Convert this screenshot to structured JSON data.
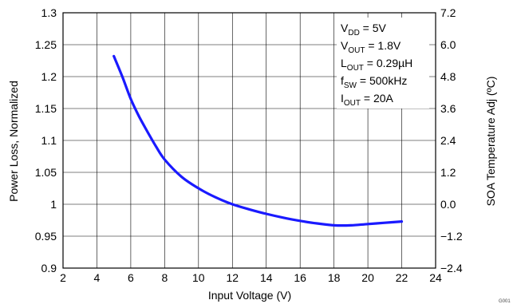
{
  "chart_data": {
    "type": "line",
    "xlabel": "Input Voltage (V)",
    "ylabel": "Power Loss, Normalized",
    "y2label": "SOA Temperature Adj (ºC)",
    "xlim": [
      2,
      24
    ],
    "ylim": [
      0.9,
      1.3
    ],
    "y2lim": [
      -2.4,
      7.2
    ],
    "x_ticks": [
      "2",
      "4",
      "6",
      "8",
      "10",
      "12",
      "14",
      "16",
      "18",
      "20",
      "22",
      "24"
    ],
    "y_ticks": [
      "0.9",
      "0.95",
      "1",
      "1.05",
      "1.1",
      "1.15",
      "1.2",
      "1.25",
      "1.3"
    ],
    "y2_ticks": [
      "−2.4",
      "−1.2",
      "0.0",
      "1.2",
      "2.4",
      "3.6",
      "4.8",
      "6.0",
      "7.2"
    ],
    "grid": true,
    "series": [
      {
        "color": "#1a1aff",
        "x": [
          5,
          5.5,
          6,
          6.5,
          7,
          7.5,
          8,
          9,
          10,
          11,
          12,
          13,
          14,
          15,
          16,
          17,
          18,
          19,
          20,
          21,
          22
        ],
        "y": [
          1.232,
          1.2,
          1.165,
          1.137,
          1.113,
          1.09,
          1.07,
          1.043,
          1.025,
          1.011,
          1.0,
          0.992,
          0.985,
          0.979,
          0.974,
          0.97,
          0.967,
          0.967,
          0.969,
          0.971,
          0.973
        ]
      }
    ],
    "annotation": {
      "lines": [
        {
          "main": "V",
          "sub": "DD",
          "rest": " = 5V"
        },
        {
          "main": "V",
          "sub": "OUT",
          "rest": " = 1.8V"
        },
        {
          "main": "L",
          "sub": "OUT",
          "rest": " = 0.29µH"
        },
        {
          "main": "f",
          "sub": "SW",
          "rest": " = 500kHz"
        },
        {
          "main": "I",
          "sub": "OUT",
          "rest": " = 20A"
        }
      ]
    },
    "figure_id": "G001"
  }
}
